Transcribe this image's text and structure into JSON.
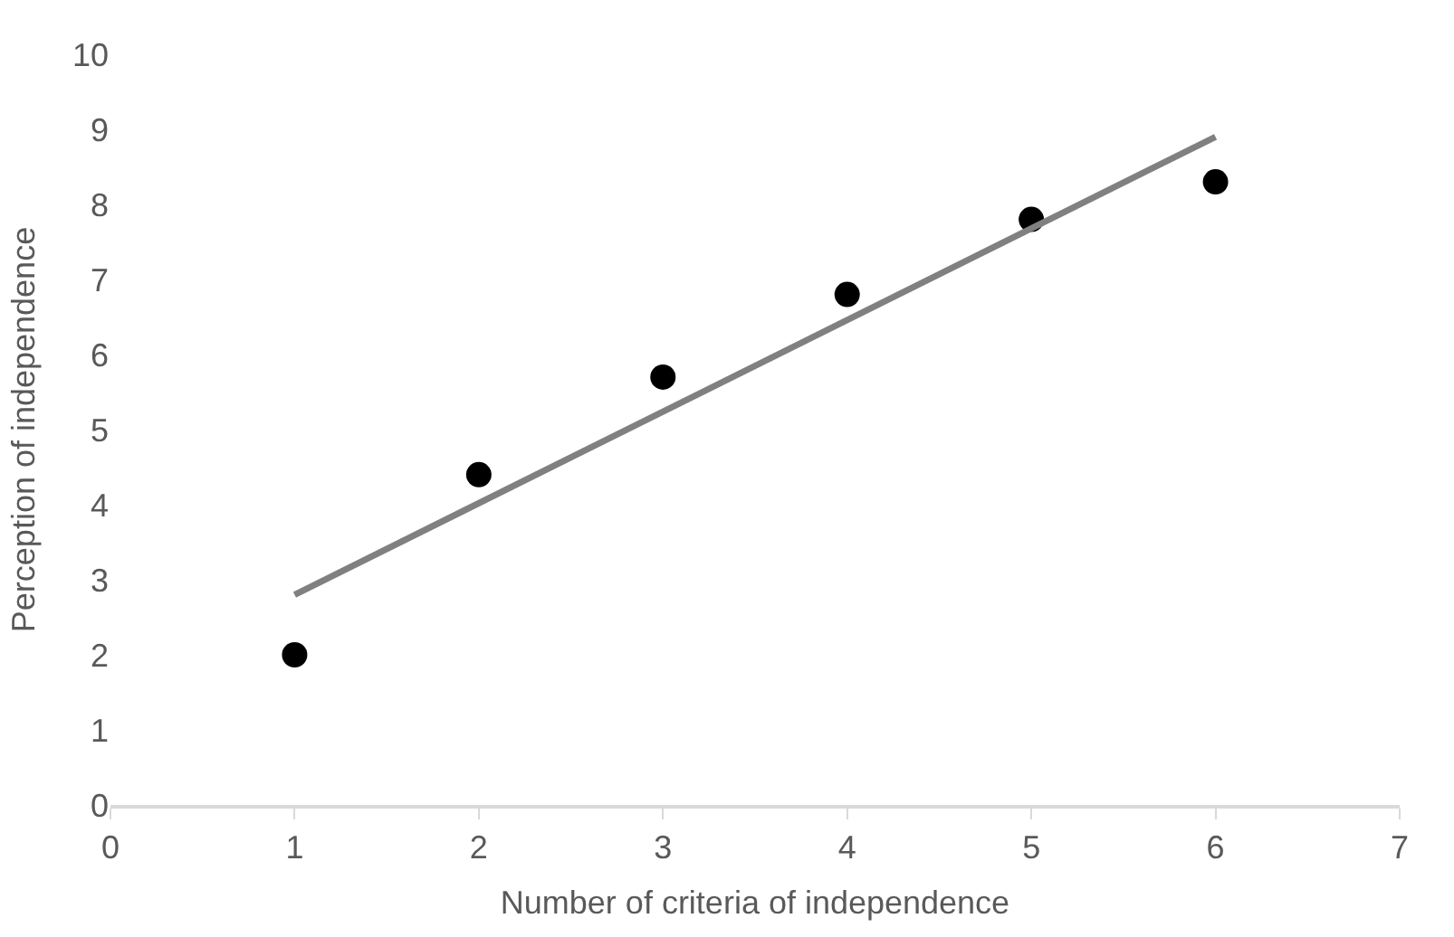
{
  "chart_data": {
    "type": "scatter",
    "xlabel": "Number of criteria of independence",
    "ylabel": "Perception of independence",
    "xlim": [
      0,
      7
    ],
    "xticks": [
      0,
      1,
      2,
      3,
      4,
      5,
      6,
      7
    ],
    "ylim": [
      0,
      10
    ],
    "yticks": [
      0,
      1,
      2,
      3,
      4,
      5,
      6,
      7,
      8,
      9,
      10
    ],
    "marker": "circle",
    "series": [
      {
        "color": "#000000",
        "x": [
          1,
          2,
          3,
          4,
          5,
          6
        ],
        "values": [
          2.0,
          4.4,
          5.7,
          6.8,
          7.8,
          8.3
        ]
      },
      {
        "type": "line",
        "color": "#808080",
        "marker": "none",
        "line_style": "solid",
        "x": [
          1,
          6
        ],
        "values": [
          2.8,
          8.9
        ]
      }
    ]
  }
}
